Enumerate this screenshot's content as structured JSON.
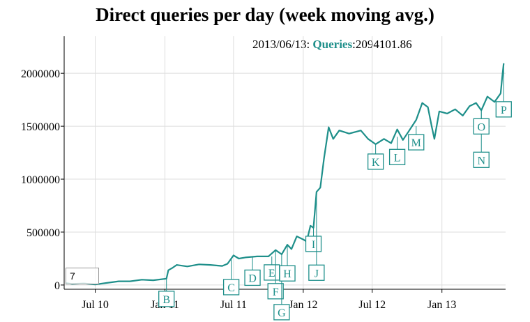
{
  "chart_data": {
    "type": "line",
    "title": "Direct queries per day (week moving avg.)",
    "legend": {
      "date": "2013/06/13:",
      "series_name": "Queries",
      "value": "2094101.86"
    },
    "roll_period": "7",
    "x_ticks": [
      "Jul 10",
      "Jan 11",
      "Jul 11",
      "Jan 12",
      "Jul 12",
      "Jan 13"
    ],
    "y_ticks": [
      "0",
      "500000",
      "1000000",
      "1500000",
      "2000000"
    ],
    "ylim": [
      -40000,
      2350000
    ],
    "grid": true,
    "series": [
      {
        "name": "Queries",
        "color": "#1e8f8a",
        "points": [
          [
            "2010-04-15",
            20000
          ],
          [
            "2010-05-01",
            10000
          ],
          [
            "2010-06-01",
            15000
          ],
          [
            "2010-07-01",
            5000
          ],
          [
            "2010-08-01",
            20000
          ],
          [
            "2010-09-01",
            35000
          ],
          [
            "2010-10-01",
            35000
          ],
          [
            "2010-11-01",
            50000
          ],
          [
            "2010-12-01",
            45000
          ],
          [
            "2011-01-05",
            60000
          ],
          [
            "2011-01-10",
            140000
          ],
          [
            "2011-01-20",
            160000
          ],
          [
            "2011-02-01",
            190000
          ],
          [
            "2011-03-01",
            175000
          ],
          [
            "2011-04-01",
            195000
          ],
          [
            "2011-05-01",
            190000
          ],
          [
            "2011-06-01",
            180000
          ],
          [
            "2011-06-15",
            200000
          ],
          [
            "2011-07-01",
            280000
          ],
          [
            "2011-07-15",
            250000
          ],
          [
            "2011-08-01",
            260000
          ],
          [
            "2011-09-01",
            270000
          ],
          [
            "2011-10-01",
            270000
          ],
          [
            "2011-10-20",
            330000
          ],
          [
            "2011-11-05",
            290000
          ],
          [
            "2011-11-20",
            380000
          ],
          [
            "2011-12-01",
            340000
          ],
          [
            "2011-12-15",
            460000
          ],
          [
            "2012-01-01",
            430000
          ],
          [
            "2012-01-10",
            410000
          ],
          [
            "2012-01-20",
            560000
          ],
          [
            "2012-01-28",
            540000
          ],
          [
            "2012-02-05",
            880000
          ],
          [
            "2012-02-15",
            920000
          ],
          [
            "2012-02-25",
            1200000
          ],
          [
            "2012-03-08",
            1490000
          ],
          [
            "2012-03-20",
            1380000
          ],
          [
            "2012-04-05",
            1460000
          ],
          [
            "2012-05-01",
            1430000
          ],
          [
            "2012-06-01",
            1460000
          ],
          [
            "2012-06-20",
            1380000
          ],
          [
            "2012-07-10",
            1330000
          ],
          [
            "2012-08-01",
            1380000
          ],
          [
            "2012-08-20",
            1340000
          ],
          [
            "2012-09-05",
            1470000
          ],
          [
            "2012-09-20",
            1370000
          ],
          [
            "2012-10-05",
            1450000
          ],
          [
            "2012-10-25",
            1560000
          ],
          [
            "2012-11-10",
            1720000
          ],
          [
            "2012-11-25",
            1680000
          ],
          [
            "2012-12-05",
            1500000
          ],
          [
            "2012-12-12",
            1380000
          ],
          [
            "2012-12-25",
            1640000
          ],
          [
            "2013-01-15",
            1620000
          ],
          [
            "2013-02-05",
            1660000
          ],
          [
            "2013-02-25",
            1600000
          ],
          [
            "2013-03-15",
            1690000
          ],
          [
            "2013-04-01",
            1720000
          ],
          [
            "2013-04-15",
            1650000
          ],
          [
            "2013-05-01",
            1780000
          ],
          [
            "2013-05-20",
            1730000
          ],
          [
            "2013-06-05",
            1810000
          ],
          [
            "2013-06-10",
            2000000
          ],
          [
            "2013-06-13",
            2094101.86
          ]
        ]
      }
    ],
    "annotations": [
      {
        "label": "B",
        "x": "2011-01-05",
        "y": 60000,
        "offset": 18
      },
      {
        "label": "C",
        "x": "2011-06-25",
        "y": 250000,
        "offset": 30
      },
      {
        "label": "D",
        "x": "2011-08-20",
        "y": 260000,
        "offset": 18
      },
      {
        "label": "E",
        "x": "2011-10-10",
        "y": 270000,
        "offset": 12
      },
      {
        "label": "F",
        "x": "2011-10-20",
        "y": 330000,
        "offset": 48
      },
      {
        "label": "G",
        "x": "2011-11-05",
        "y": 290000,
        "offset": 72
      },
      {
        "label": "H",
        "x": "2011-11-20",
        "y": 380000,
        "offset": 30
      },
      {
        "label": "I",
        "x": "2012-01-28",
        "y": 540000,
        "offset": 12
      },
      {
        "label": "J",
        "x": "2012-02-05",
        "y": 880000,
        "offset": 105
      },
      {
        "label": "K",
        "x": "2012-07-10",
        "y": 1330000,
        "offset": 14
      },
      {
        "label": "L",
        "x": "2012-09-05",
        "y": 1400000,
        "offset": 18
      },
      {
        "label": "M",
        "x": "2012-10-25",
        "y": 1500000,
        "offset": 12
      },
      {
        "label": "N",
        "x": "2013-04-15",
        "y": 1650000,
        "offset": 60
      },
      {
        "label": "O",
        "x": "2013-04-15",
        "y": 1650000,
        "offset": 12
      },
      {
        "label": "P",
        "x": "2013-06-13",
        "y": 2094101.86,
        "offset": 55
      }
    ]
  }
}
